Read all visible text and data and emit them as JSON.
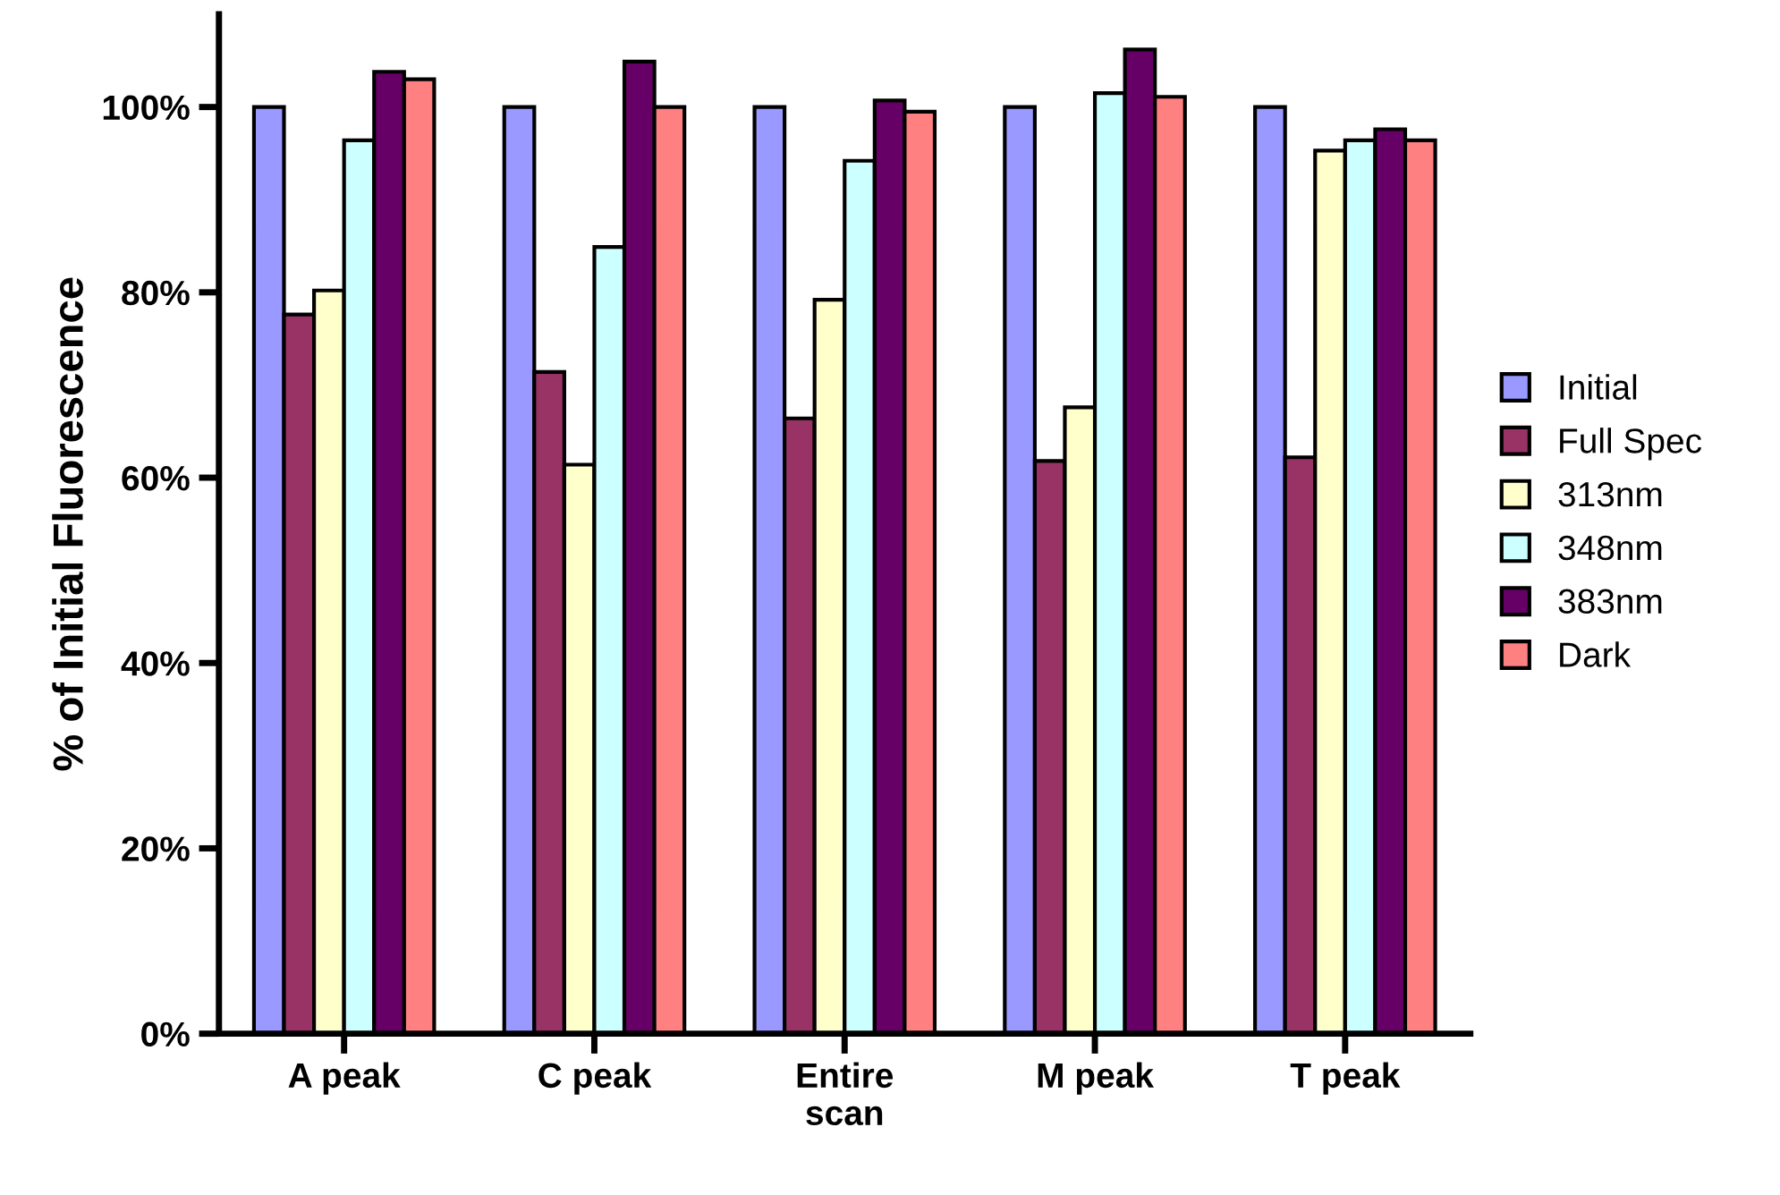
{
  "chart_data": {
    "type": "bar",
    "ylabel": "% of Initial Fluorescence",
    "categories": [
      "A peak",
      "C peak",
      "Entire\nscan",
      "M peak",
      "T peak"
    ],
    "series": [
      {
        "name": "Initial",
        "color": "#9999ff",
        "values": [
          100,
          100,
          100,
          100,
          100
        ]
      },
      {
        "name": "Full Spec",
        "color": "#993366",
        "values": [
          77.6,
          71.4,
          66.4,
          61.8,
          62.2
        ]
      },
      {
        "name": "313nm",
        "color": "#ffffcc",
        "values": [
          80.2,
          61.4,
          79.2,
          67.6,
          95.3
        ]
      },
      {
        "name": "348nm",
        "color": "#ccffff",
        "values": [
          96.4,
          84.9,
          94.2,
          101.5,
          96.4
        ]
      },
      {
        "name": "383nm",
        "color": "#660066",
        "values": [
          103.8,
          104.9,
          100.7,
          106.2,
          97.6
        ]
      },
      {
        "name": "Dark",
        "color": "#ff8080",
        "values": [
          103.0,
          100,
          99.5,
          101.1,
          96.4
        ]
      }
    ],
    "ylim": [
      0,
      110
    ],
    "yticks": [
      {
        "value": 0,
        "label": "0%"
      },
      {
        "value": 20,
        "label": "20%"
      },
      {
        "value": 40,
        "label": "40%"
      },
      {
        "value": 60,
        "label": "60%"
      },
      {
        "value": 80,
        "label": "80%"
      },
      {
        "value": 100,
        "label": "100%"
      }
    ],
    "grid": false,
    "legend": "right"
  }
}
